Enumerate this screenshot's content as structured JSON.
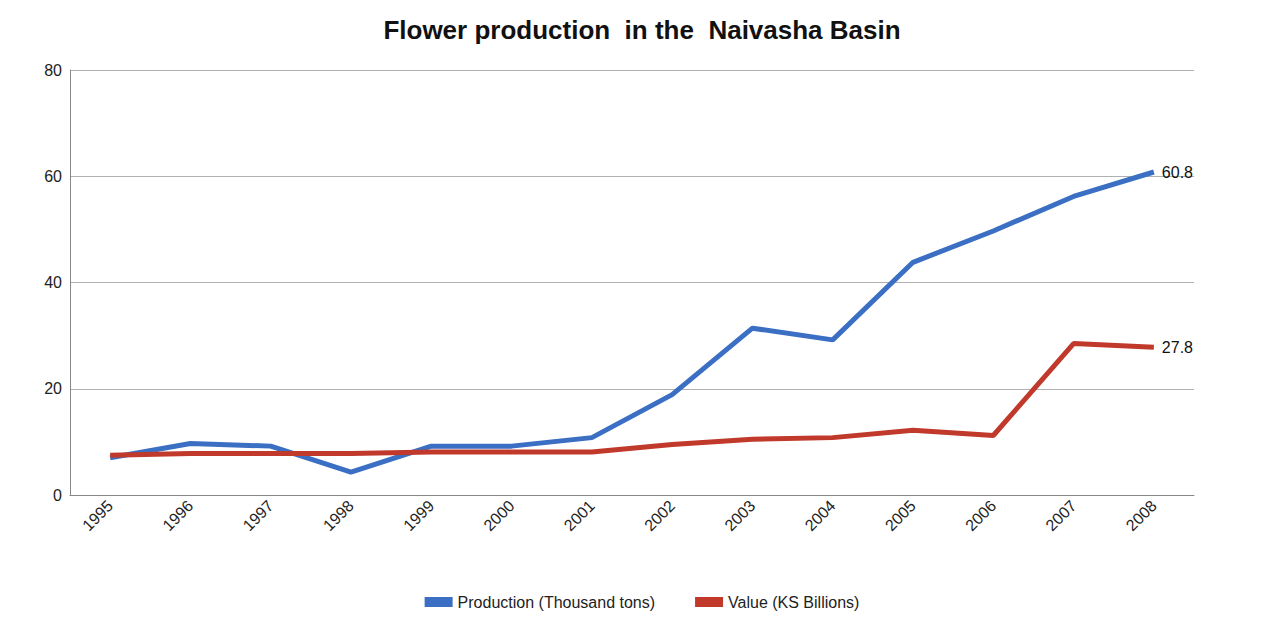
{
  "chart_data": {
    "type": "line",
    "title": "Flower production  in the  Naivasha Basin",
    "categories": [
      "1995",
      "1996",
      "1997",
      "1998",
      "1999",
      "2000",
      "2001",
      "2002",
      "2003",
      "2004",
      "2005",
      "2006",
      "2007",
      "2008"
    ],
    "series": [
      {
        "name": "Production (Thousand tons)",
        "color": "#3a6fc4",
        "values": [
          7,
          9.7,
          9.2,
          4.3,
          9.2,
          9.2,
          10.8,
          18.9,
          31.4,
          29.2,
          43.8,
          49.7,
          56.2,
          60.8
        ],
        "value_labels": [
          null,
          null,
          null,
          null,
          null,
          null,
          null,
          null,
          null,
          null,
          null,
          null,
          null,
          "60.8"
        ]
      },
      {
        "name": "Value (KS Billions)",
        "color": "#c0392b",
        "values": [
          7.5,
          7.8,
          7.8,
          7.8,
          8.1,
          8.1,
          8.1,
          9.5,
          10.5,
          10.8,
          12.2,
          11.2,
          28.5,
          27.8
        ],
        "value_labels": [
          null,
          null,
          null,
          null,
          null,
          null,
          null,
          null,
          null,
          null,
          null,
          null,
          null,
          "27.8"
        ]
      }
    ],
    "ylim": [
      0,
      80
    ],
    "yticks": [
      0,
      20,
      40,
      60,
      80
    ],
    "grid": true,
    "legend": "bottom"
  }
}
